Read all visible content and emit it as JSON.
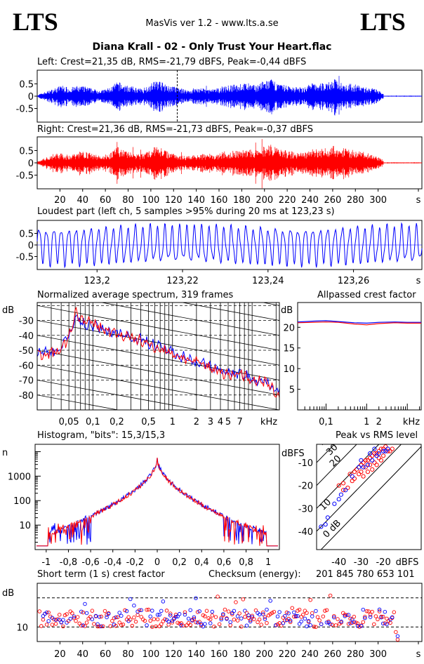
{
  "header": {
    "logo_left": "LTS",
    "logo_right": "LTS",
    "app_title": "MasVis ver 1.2 - www.lts.a.se",
    "file_title": "Diana Krall - 02 - Only Trust Your Heart.flac"
  },
  "colors": {
    "left": "#0000ff",
    "right": "#ff0000",
    "axis": "#000000"
  },
  "chart_data": [
    {
      "type": "line",
      "id": "left_waveform",
      "title": "Left: Crest=21,35 dB, RMS=-21,79 dBFS, Peak=-0,44 dBFS",
      "series": [
        {
          "name": "left",
          "color": "#0000ff"
        }
      ],
      "y_ticks": [
        "0.5",
        "0",
        "-0.5"
      ],
      "ylim": [
        -1,
        1
      ],
      "xlim": [
        0,
        320
      ],
      "marker_x": 123.23,
      "envelope": [
        0.05,
        0.18,
        0.3,
        0.45,
        0.35,
        0.42,
        0.4,
        0.3,
        0.25,
        0.35,
        0.6,
        0.45,
        0.38,
        0.3,
        0.5,
        0.7,
        0.45,
        0.4,
        0.3,
        0.25,
        0.35,
        0.3,
        0.28,
        0.4,
        0.45,
        0.5,
        0.55,
        0.45,
        0.6,
        0.7,
        0.5,
        0.45,
        0.4,
        0.35,
        0.55,
        0.5,
        0.6,
        0.7,
        0.55,
        0.5,
        0.45,
        0.35,
        0.3,
        0.12
      ]
    },
    {
      "type": "line",
      "id": "right_waveform",
      "title": "Right: Crest=21,36 dB, RMS=-21,73 dBFS, Peak=-0,37 dBFS",
      "series": [
        {
          "name": "right",
          "color": "#ff0000"
        }
      ],
      "y_ticks": [
        "0.5",
        "0",
        "-0.5"
      ],
      "ylim": [
        -1,
        1
      ],
      "xlim": [
        0,
        320
      ],
      "x_ticks": [
        "20",
        "40",
        "60",
        "80",
        "100",
        "120",
        "140",
        "160",
        "180",
        "200",
        "220",
        "240",
        "260",
        "280",
        "300",
        "s"
      ],
      "envelope": [
        0.05,
        0.2,
        0.35,
        0.42,
        0.3,
        0.45,
        0.5,
        0.35,
        0.3,
        0.4,
        0.65,
        0.5,
        0.42,
        0.35,
        0.55,
        0.75,
        0.5,
        0.42,
        0.3,
        0.3,
        0.38,
        0.35,
        0.3,
        0.45,
        0.5,
        0.52,
        0.6,
        0.5,
        0.65,
        0.75,
        0.55,
        0.5,
        0.45,
        0.4,
        0.6,
        0.55,
        0.65,
        0.7,
        0.6,
        0.55,
        0.5,
        0.4,
        0.3,
        0.12
      ]
    },
    {
      "type": "line",
      "id": "loudest_part",
      "title": "Loudest part (left  ch, 5 samples >95% during 20 ms at 123,23 s)",
      "series": [
        {
          "name": "left",
          "color": "#0000ff"
        }
      ],
      "y_ticks": [
        "0.5",
        "0",
        "-0.5"
      ],
      "ylim": [
        -1,
        1
      ],
      "x_ticks": [
        "123,2",
        "123,22",
        "123,24",
        "123,26",
        "s"
      ],
      "xlim": [
        123.186,
        123.276
      ],
      "cycles": 52
    },
    {
      "type": "line",
      "id": "avg_spectrum",
      "title": "Normalized average spectrum, 319 frames",
      "ylabel": "dB",
      "xlabel": "kHz",
      "y_ticks": [
        "-30",
        "-40",
        "-50",
        "-60",
        "-70",
        "-80"
      ],
      "ylim": [
        -90,
        -18
      ],
      "x_ticks": [
        "0,05",
        "0,1",
        "0,2",
        "0,5",
        "1",
        "2",
        "3",
        "4",
        "5",
        "7",
        "kHz"
      ],
      "xlim": [
        0.02,
        22
      ],
      "x": [
        0.02,
        0.03,
        0.04,
        0.05,
        0.06,
        0.08,
        0.1,
        0.12,
        0.15,
        0.2,
        0.3,
        0.4,
        0.5,
        0.7,
        1,
        1.5,
        2,
        3,
        4,
        5,
        7,
        10,
        15,
        22
      ],
      "series": [
        {
          "name": "left",
          "color": "#0000ff",
          "values": [
            -52,
            -51,
            -49,
            -40,
            -28,
            -33,
            -33,
            -35,
            -37,
            -38,
            -41,
            -43,
            -45,
            -48,
            -51,
            -55,
            -58,
            -61,
            -64,
            -66,
            -65,
            -69,
            -71,
            -78
          ]
        },
        {
          "name": "right",
          "color": "#ff0000",
          "values": [
            -53,
            -52,
            -50,
            -42,
            -25,
            -31,
            -32,
            -34,
            -37,
            -39,
            -42,
            -44,
            -46,
            -49,
            -52,
            -56,
            -58,
            -62,
            -64,
            -67,
            -65,
            -70,
            -72,
            -81
          ]
        }
      ]
    },
    {
      "type": "line",
      "id": "allpassed_crest",
      "title": "Allpassed crest factor",
      "ylabel": "dB",
      "xlabel": "kHz",
      "y_ticks": [
        "20",
        "15",
        "10",
        "5"
      ],
      "ylim": [
        0,
        26
      ],
      "x_ticks": [
        "0,1",
        "1",
        "2",
        "kHz"
      ],
      "xlim": [
        0.02,
        22
      ],
      "x": [
        0.02,
        0.05,
        0.1,
        0.2,
        0.5,
        1,
        2,
        5,
        10,
        22
      ],
      "series": [
        {
          "name": "left",
          "color": "#0000ff",
          "values": [
            21.3,
            21.5,
            21.6,
            21.4,
            21.1,
            21.0,
            21.2,
            21.3,
            21.2,
            21.2
          ]
        },
        {
          "name": "right",
          "color": "#ff0000",
          "values": [
            21.1,
            21.2,
            21.3,
            21.2,
            20.8,
            20.6,
            20.9,
            21.1,
            21.0,
            21.0
          ]
        }
      ]
    },
    {
      "type": "line",
      "id": "histogram",
      "title": "Histogram, \"bits\": 15,3/15,3",
      "ylabel": "n",
      "y_ticks": [
        "1000",
        "100",
        "10"
      ],
      "ylim_log10": [
        0,
        4.3
      ],
      "x_ticks": [
        "-1",
        "-0,8",
        "-0,6",
        "-0,4",
        "-0,2",
        "0",
        "0,2",
        "0,4",
        "0,6",
        "0,8",
        "1"
      ],
      "xlim": [
        -1.1,
        1.1
      ],
      "peak_log10": 3.7,
      "cutoff": 0.98
    },
    {
      "type": "scatter",
      "id": "peak_vs_rms",
      "title": "Peak vs RMS level",
      "ylabel": "dBFS",
      "xlabel": "dBFS",
      "y_ticks": [
        "-10",
        "-20",
        "-30",
        "-40"
      ],
      "ylim": [
        -48,
        -2
      ],
      "x_ticks": [
        "-40",
        "-30",
        "-20",
        "dBFS"
      ],
      "xlim": [
        -50,
        -3
      ],
      "diag_labels": [
        "40",
        "30",
        "20",
        "10",
        "0 dB"
      ],
      "points_right": [
        [
          -40,
          -20
        ],
        [
          -38,
          -19
        ],
        [
          -35,
          -15
        ],
        [
          -33,
          -14
        ],
        [
          -32,
          -13
        ],
        [
          -30,
          -11
        ],
        [
          -29,
          -10
        ],
        [
          -28,
          -9
        ],
        [
          -27,
          -9
        ],
        [
          -26,
          -8
        ],
        [
          -25,
          -7
        ],
        [
          -24,
          -6
        ],
        [
          -23,
          -6
        ],
        [
          -22,
          -5
        ],
        [
          -21,
          -4
        ],
        [
          -20,
          -4
        ],
        [
          -19,
          -3
        ],
        [
          -28,
          -12
        ],
        [
          -30,
          -14
        ],
        [
          -31,
          -15
        ],
        [
          -33,
          -17
        ],
        [
          -34,
          -18
        ],
        [
          -36,
          -21
        ],
        [
          -38,
          -22
        ],
        [
          -26,
          -11
        ],
        [
          -24,
          -10
        ],
        [
          -22,
          -8
        ],
        [
          -20,
          -7
        ],
        [
          -18,
          -5
        ],
        [
          -17,
          -5
        ],
        [
          -16,
          -4
        ],
        [
          -27,
          -14
        ],
        [
          -29,
          -16
        ],
        [
          -25,
          -13
        ],
        [
          -23,
          -11
        ],
        [
          -21,
          -9
        ]
      ],
      "points_left": [
        [
          -48,
          -38
        ],
        [
          -46,
          -37
        ],
        [
          -45,
          -34
        ],
        [
          -42,
          -28
        ],
        [
          -40,
          -26
        ],
        [
          -39,
          -24
        ],
        [
          -37,
          -22
        ],
        [
          -34,
          -16
        ],
        [
          -31,
          -12
        ],
        [
          -29,
          -12
        ],
        [
          -27,
          -11
        ],
        [
          -25,
          -9
        ],
        [
          -23,
          -7
        ],
        [
          -22,
          -6
        ],
        [
          -20,
          -5
        ],
        [
          -19,
          -5
        ],
        [
          -18,
          -4
        ],
        [
          -30,
          -9
        ],
        [
          -26,
          -6
        ],
        [
          -24,
          -4
        ]
      ]
    },
    {
      "type": "scatter",
      "id": "short_term_crest",
      "title": "Short term (1 s) crest factor",
      "ylabel": "dB",
      "y_ticks": [
        "10"
      ],
      "ylim": [
        5,
        25
      ],
      "x_ticks": [
        "20",
        "40",
        "60",
        "80",
        "100",
        "120",
        "140",
        "160",
        "180",
        "200",
        "220",
        "240",
        "260",
        "280",
        "300",
        "s"
      ],
      "xlim": [
        0,
        320
      ],
      "dashed_levels": [
        10,
        20
      ],
      "checksum_label": "Checksum (energy):",
      "checksum_value": "201 845 780 653 101"
    }
  ]
}
